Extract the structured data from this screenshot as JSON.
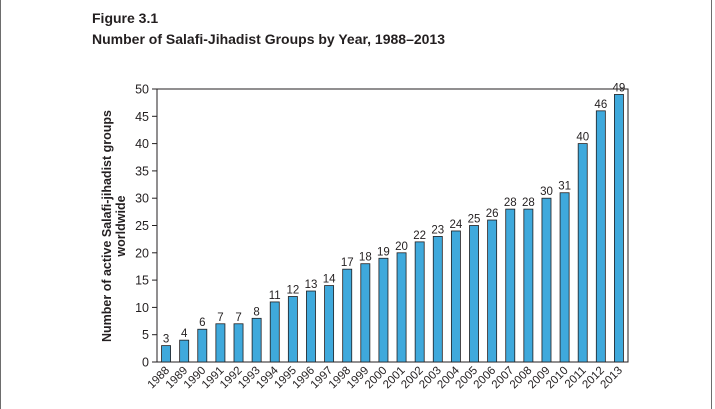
{
  "figure": {
    "label": "Figure 3.1",
    "title": "Number of Salafi-Jihadist Groups by Year, 1988–2013"
  },
  "chart_data": {
    "type": "bar",
    "title": "Number of Salafi-Jihadist Groups by Year, 1988–2013",
    "xlabel": "",
    "ylabel_lines": [
      "Number of active Salafi-jihadist groups",
      "worldwide"
    ],
    "ylim": [
      0,
      50
    ],
    "yticks": [
      0,
      5,
      10,
      15,
      20,
      25,
      30,
      35,
      40,
      45,
      50
    ],
    "grid": false,
    "categories": [
      "1988",
      "1989",
      "1990",
      "1991",
      "1992",
      "1993",
      "1994",
      "1995",
      "1996",
      "1997",
      "1998",
      "1999",
      "2000",
      "2001",
      "2002",
      "2003",
      "2004",
      "2005",
      "2006",
      "2007",
      "2008",
      "2009",
      "2010",
      "2011",
      "2012",
      "2013"
    ],
    "values": [
      3,
      4,
      6,
      7,
      7,
      8,
      11,
      12,
      13,
      14,
      17,
      18,
      19,
      20,
      22,
      23,
      24,
      25,
      26,
      28,
      28,
      30,
      31,
      40,
      46,
      49
    ],
    "bar_color": "#3fa9dc",
    "bar_edge_color": "#231f20"
  }
}
